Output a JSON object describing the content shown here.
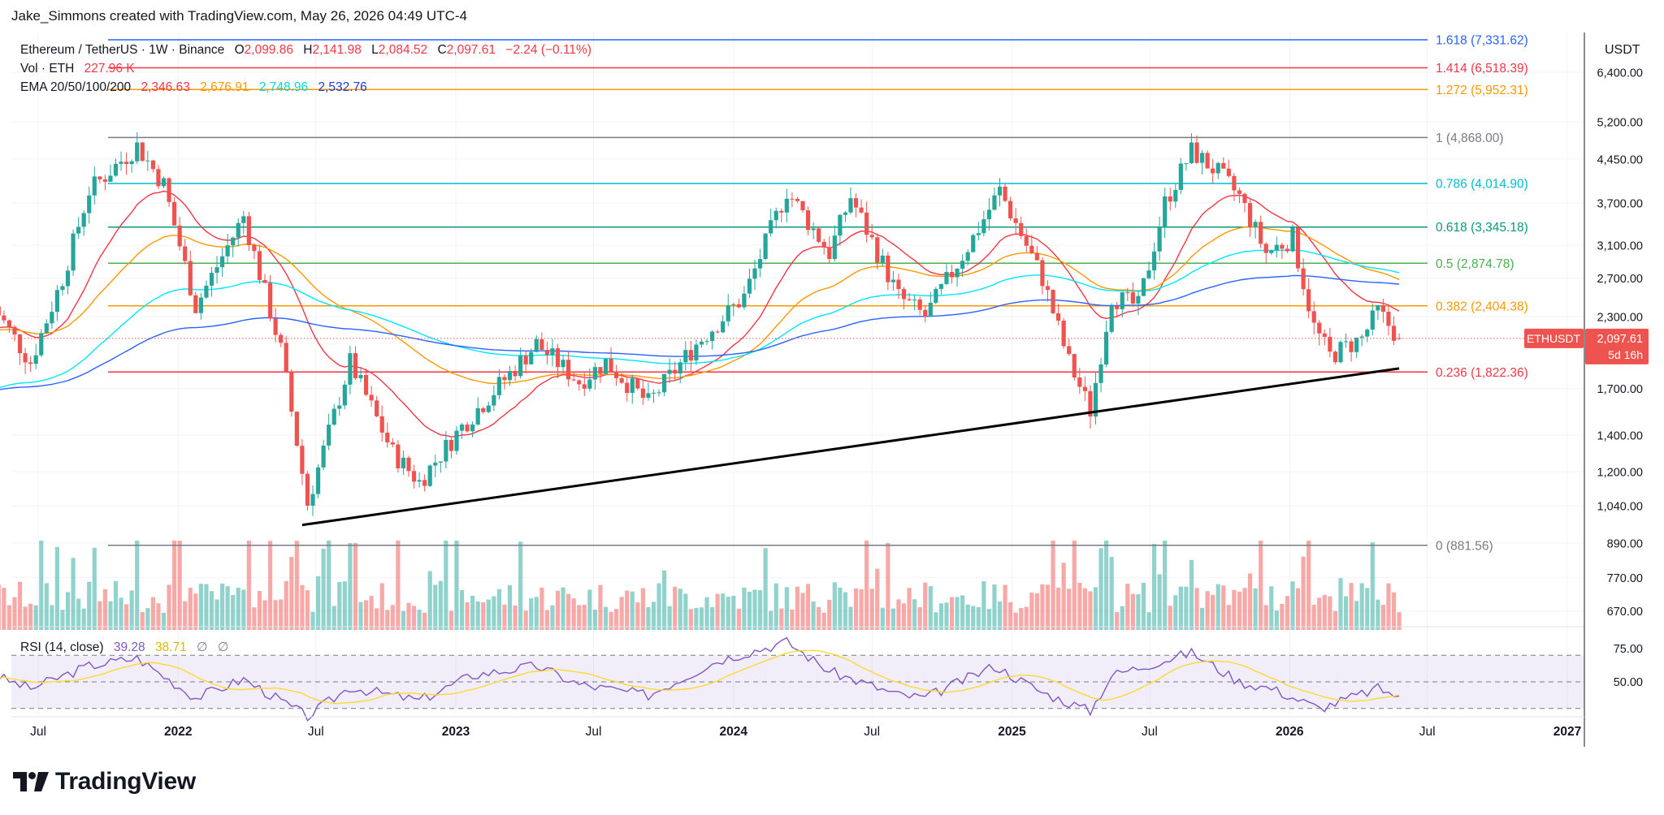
{
  "header": {
    "attribution": "Jake_Simmons created with TradingView.com, May 26, 2026 04:49 UTC-4"
  },
  "legend": {
    "symbol": "Ethereum / TetherUS · 1W · Binance",
    "open_label": "O",
    "open": "2,099.86",
    "high_label": "H",
    "high": "2,141.98",
    "low_label": "L",
    "low": "2,084.52",
    "close_label": "C",
    "close": "2,097.61",
    "change": "−2.24 (−0.11%)",
    "vol_label": "Vol · ETH",
    "vol": "227.96 K",
    "ema_label": "EMA 20/50/100/200",
    "ema20": "2,346.63",
    "ema50": "2,676.91",
    "ema100": "2,748.96",
    "ema200": "2,532.76",
    "rsi_label": "RSI (14, close)",
    "rsi": "39.28",
    "rsi_ma": "38.71",
    "rsi_na1": "∅",
    "rsi_na2": "∅"
  },
  "branding": {
    "logo_text": "TradingView",
    "logo_icon": "tradingview-logo-icon"
  },
  "colors": {
    "up": "#26a69a",
    "down": "#ef5350",
    "ema20": "#f23645",
    "ema50": "#ff9800",
    "ema100": "#00e5ff",
    "ema200": "#2962ff",
    "trendline": "#000000",
    "rsi": "#7e57c2",
    "rsi_ma": "#fdd835"
  },
  "chart_data": {
    "type": "candlestick",
    "symbol": "ETHUSDT",
    "currency": "USDT",
    "price_scale": "log",
    "y_ticks": [
      6400,
      5200,
      4450,
      3700,
      3100,
      2700,
      2300,
      1700,
      1400,
      1200,
      1040,
      890,
      770,
      670
    ],
    "y_tick_labels": [
      "6,400.00",
      "5,200.00",
      "4,450.00",
      "3,700.00",
      "3,100.00",
      "2,700.00",
      "2,300.00",
      "1,700.00",
      "1,400.00",
      "1,200.00",
      "1,040.00",
      "890.00",
      "770.00",
      "670.00"
    ],
    "x_tick_labels": [
      {
        "label": "Jul",
        "date": "2021-07-01"
      },
      {
        "label": "2022",
        "date": "2022-01-01"
      },
      {
        "label": "Jul",
        "date": "2022-07-01"
      },
      {
        "label": "2023",
        "date": "2023-01-01"
      },
      {
        "label": "Jul",
        "date": "2023-07-01"
      },
      {
        "label": "2024",
        "date": "2024-01-01"
      },
      {
        "label": "Jul",
        "date": "2024-07-01"
      },
      {
        "label": "2025",
        "date": "2025-01-01"
      },
      {
        "label": "Jul",
        "date": "2025-07-01"
      },
      {
        "label": "2026",
        "date": "2026-01-01"
      },
      {
        "label": "Jul",
        "date": "2026-07-01"
      },
      {
        "label": "2027",
        "date": "2027-01-01"
      }
    ],
    "price_path": [
      {
        "date": "2021-05-03",
        "price": 2400
      },
      {
        "date": "2021-06-21",
        "price": 1900
      },
      {
        "date": "2021-08-02",
        "price": 2700
      },
      {
        "date": "2021-09-06",
        "price": 3900
      },
      {
        "date": "2021-11-08",
        "price": 4700
      },
      {
        "date": "2021-12-13",
        "price": 4000
      },
      {
        "date": "2022-01-24",
        "price": 2400
      },
      {
        "date": "2022-03-28",
        "price": 3500
      },
      {
        "date": "2022-05-16",
        "price": 2000
      },
      {
        "date": "2022-06-20",
        "price": 1050
      },
      {
        "date": "2022-08-15",
        "price": 1900
      },
      {
        "date": "2022-10-10",
        "price": 1300
      },
      {
        "date": "2022-11-14",
        "price": 1150
      },
      {
        "date": "2023-01-09",
        "price": 1450
      },
      {
        "date": "2023-04-17",
        "price": 2050
      },
      {
        "date": "2023-06-12",
        "price": 1750
      },
      {
        "date": "2023-07-17",
        "price": 1900
      },
      {
        "date": "2023-09-11",
        "price": 1600
      },
      {
        "date": "2023-11-13",
        "price": 2050
      },
      {
        "date": "2024-01-15",
        "price": 2500
      },
      {
        "date": "2024-03-11",
        "price": 3900
      },
      {
        "date": "2024-05-06",
        "price": 3000
      },
      {
        "date": "2024-06-03",
        "price": 3800
      },
      {
        "date": "2024-08-05",
        "price": 2500
      },
      {
        "date": "2024-09-09",
        "price": 2300
      },
      {
        "date": "2024-11-11",
        "price": 3200
      },
      {
        "date": "2024-12-16",
        "price": 3900
      },
      {
        "date": "2025-02-10",
        "price": 2700
      },
      {
        "date": "2025-03-17",
        "price": 1900
      },
      {
        "date": "2025-04-14",
        "price": 1550
      },
      {
        "date": "2025-05-12",
        "price": 2500
      },
      {
        "date": "2025-06-16",
        "price": 2400
      },
      {
        "date": "2025-07-21",
        "price": 3700
      },
      {
        "date": "2025-08-25",
        "price": 4600
      },
      {
        "date": "2025-09-29",
        "price": 4200
      },
      {
        "date": "2025-10-27",
        "price": 3800
      },
      {
        "date": "2025-12-01",
        "price": 3000
      },
      {
        "date": "2026-01-05",
        "price": 3200
      },
      {
        "date": "2026-02-02",
        "price": 2200
      },
      {
        "date": "2026-02-23",
        "price": 1950
      },
      {
        "date": "2026-04-06",
        "price": 2100
      },
      {
        "date": "2026-04-27",
        "price": 2350
      },
      {
        "date": "2026-05-25",
        "price": 2097.61
      }
    ],
    "fib_levels": [
      {
        "label": "1.618 (7,331.62)",
        "price": 7331.62,
        "color": "#2962ff"
      },
      {
        "label": "1.414 (6,518.39)",
        "price": 6518.39,
        "color": "#f23645"
      },
      {
        "label": "1.272 (5,952.31)",
        "price": 5952.31,
        "color": "#ff9800"
      },
      {
        "label": "1 (4,868.00)",
        "price": 4868.0,
        "color": "#787b86"
      },
      {
        "label": "0.786 (4,014.90)",
        "price": 4014.9,
        "color": "#00bcd4"
      },
      {
        "label": "0.618 (3,345.18)",
        "price": 3345.18,
        "color": "#089981"
      },
      {
        "label": "0.5 (2,874.78)",
        "price": 2874.78,
        "color": "#4caf50"
      },
      {
        "label": "0.382 (2,404.38)",
        "price": 2404.38,
        "color": "#ff9800"
      },
      {
        "label": "0.236 (1,822.36)",
        "price": 1822.36,
        "color": "#f23645"
      },
      {
        "label": "0 (881.56)",
        "price": 881.56,
        "color": "#787b86"
      }
    ],
    "trendline": [
      {
        "date": "2022-06-13",
        "price": 960
      },
      {
        "date": "2026-05-25",
        "price": 1850
      }
    ],
    "last_price_tag": {
      "symbol": "ETHUSDT",
      "price": "2,097.61",
      "countdown": "5d 16h"
    },
    "rsi": {
      "ticks": [
        75,
        50
      ],
      "tick_labels": [
        "75.00",
        "50.00"
      ],
      "band": [
        30,
        70
      ],
      "path": [
        {
          "date": "2021-05-03",
          "value": 55
        },
        {
          "date": "2021-06-21",
          "value": 45
        },
        {
          "date": "2021-09-06",
          "value": 62
        },
        {
          "date": "2021-11-08",
          "value": 68
        },
        {
          "date": "2022-01-24",
          "value": 38
        },
        {
          "date": "2022-03-28",
          "value": 52
        },
        {
          "date": "2022-06-20",
          "value": 24
        },
        {
          "date": "2022-08-15",
          "value": 46
        },
        {
          "date": "2022-11-14",
          "value": 36
        },
        {
          "date": "2023-01-23",
          "value": 55
        },
        {
          "date": "2023-04-17",
          "value": 62
        },
        {
          "date": "2023-06-12",
          "value": 48
        },
        {
          "date": "2023-09-11",
          "value": 40
        },
        {
          "date": "2023-12-11",
          "value": 66
        },
        {
          "date": "2024-03-11",
          "value": 80
        },
        {
          "date": "2024-05-06",
          "value": 58
        },
        {
          "date": "2024-08-05",
          "value": 40
        },
        {
          "date": "2024-09-09",
          "value": 38
        },
        {
          "date": "2024-12-09",
          "value": 62
        },
        {
          "date": "2025-02-10",
          "value": 42
        },
        {
          "date": "2025-04-14",
          "value": 28
        },
        {
          "date": "2025-05-12",
          "value": 55
        },
        {
          "date": "2025-08-25",
          "value": 72
        },
        {
          "date": "2025-10-27",
          "value": 50
        },
        {
          "date": "2025-12-08",
          "value": 45
        },
        {
          "date": "2026-02-09",
          "value": 30
        },
        {
          "date": "2026-04-27",
          "value": 45
        },
        {
          "date": "2026-05-25",
          "value": 39.28
        }
      ]
    }
  }
}
